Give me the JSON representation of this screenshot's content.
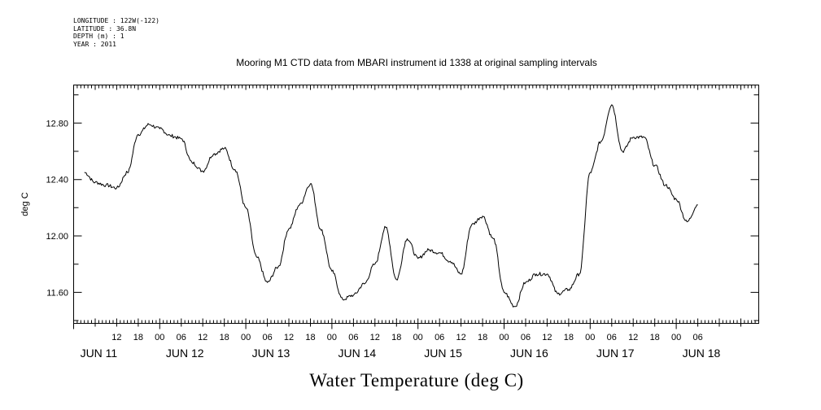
{
  "metadata": {
    "longitude": "LONGITUDE : 122W(-122)",
    "latitude": "LATITUDE : 36.8N",
    "depth": "DEPTH (m) : 1",
    "year": "YEAR : 2011"
  },
  "chart_data": {
    "type": "line",
    "title": "Mooring M1 CTD data from MBARI instrument id 1338 at original sampling intervals",
    "xlabel": "Water Temperature (deg C)",
    "ylabel": "deg C",
    "ylim": [
      11.38,
      13.07
    ],
    "yticks": [
      11.6,
      12.0,
      12.4,
      12.8
    ],
    "ytick_labels": [
      "11.60",
      "12.00",
      "12.40",
      "12.80"
    ],
    "xlim": [
      "2011-06-11T00:00",
      "2011-06-18T23:00"
    ],
    "hour_ticks": [
      "12",
      "18",
      "00",
      "06",
      "12",
      "18",
      "00",
      "06",
      "12",
      "18",
      "00",
      "06",
      "12",
      "18",
      "00",
      "06",
      "12",
      "18",
      "00",
      "06",
      "12",
      "18",
      "00",
      "06",
      "12",
      "18",
      "00",
      "06"
    ],
    "day_labels": [
      "JUN 11",
      "JUN 12",
      "JUN 13",
      "JUN 14",
      "JUN 15",
      "JUN 16",
      "JUN 17",
      "JUN 18"
    ],
    "grid": false,
    "series": [
      {
        "color": "#000000",
        "x": [
          "2011-06-11T03:00",
          "2011-06-11T06:00",
          "2011-06-11T09:00",
          "2011-06-11T12:00",
          "2011-06-11T15:00",
          "2011-06-11T18:00",
          "2011-06-11T21:00",
          "2011-06-12T00:00",
          "2011-06-12T03:00",
          "2011-06-12T06:00",
          "2011-06-12T09:00",
          "2011-06-12T12:00",
          "2011-06-12T15:00",
          "2011-06-12T18:00",
          "2011-06-12T21:00",
          "2011-06-13T00:00",
          "2011-06-13T03:00",
          "2011-06-13T06:00",
          "2011-06-13T09:00",
          "2011-06-13T12:00",
          "2011-06-13T15:00",
          "2011-06-13T18:00",
          "2011-06-13T21:00",
          "2011-06-14T00:00",
          "2011-06-14T03:00",
          "2011-06-14T06:00",
          "2011-06-14T09:00",
          "2011-06-14T12:00",
          "2011-06-14T15:00",
          "2011-06-14T18:00",
          "2011-06-14T21:00",
          "2011-06-15T00:00",
          "2011-06-15T03:00",
          "2011-06-15T06:00",
          "2011-06-15T09:00",
          "2011-06-15T12:00",
          "2011-06-15T15:00",
          "2011-06-15T18:00",
          "2011-06-15T21:00",
          "2011-06-16T00:00",
          "2011-06-16T03:00",
          "2011-06-16T06:00",
          "2011-06-16T09:00",
          "2011-06-16T12:00",
          "2011-06-16T15:00",
          "2011-06-16T18:00",
          "2011-06-16T21:00",
          "2011-06-17T00:00",
          "2011-06-17T03:00",
          "2011-06-17T06:00",
          "2011-06-17T09:00",
          "2011-06-17T12:00",
          "2011-06-17T15:00",
          "2011-06-17T18:00",
          "2011-06-17T21:00",
          "2011-06-18T00:00",
          "2011-06-18T03:00",
          "2011-06-18T06:00"
        ],
        "values": [
          12.45,
          12.38,
          12.36,
          12.34,
          12.45,
          12.72,
          12.79,
          12.76,
          12.71,
          12.69,
          12.52,
          12.46,
          12.58,
          12.62,
          12.47,
          12.2,
          11.85,
          11.67,
          11.78,
          12.05,
          12.22,
          12.37,
          12.04,
          11.75,
          11.55,
          11.58,
          11.66,
          11.8,
          12.06,
          11.69,
          11.98,
          11.84,
          11.9,
          11.88,
          11.82,
          11.73,
          12.08,
          12.14,
          11.98,
          11.6,
          11.5,
          11.67,
          11.73,
          11.73,
          11.59,
          11.62,
          11.73,
          12.45,
          12.67,
          12.93,
          12.6,
          12.7,
          12.7,
          12.5,
          12.36,
          12.26,
          12.1,
          12.22
        ]
      }
    ]
  }
}
